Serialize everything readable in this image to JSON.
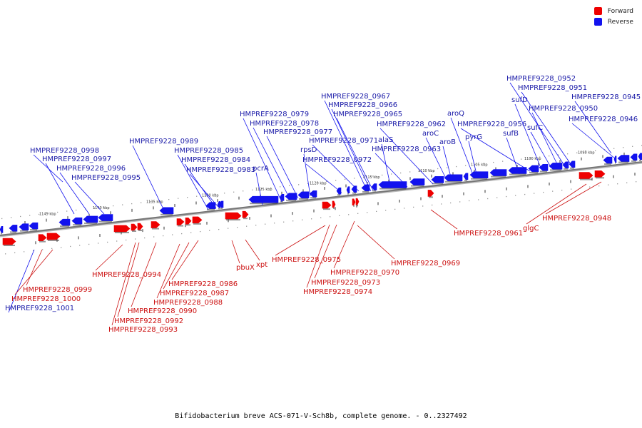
{
  "colors": {
    "forward": "#ee0000",
    "reverse": "#1212ee",
    "backbone": "#777777",
    "forward_label": "#cc1111",
    "reverse_label": "#1a1aa8"
  },
  "legend": [
    {
      "label": "Forward",
      "color": "#ee0000"
    },
    {
      "label": "Reverse",
      "color": "#1212ee"
    }
  ],
  "caption": "Bifidobacterium breve ACS-071-V-Sch8b, complete genome. - 0..2327492",
  "ticks": [
    "1145 kbp",
    "1140 kbp",
    "1135 kbp",
    "1130 kbp",
    "1125 kbp",
    "1120 kbp",
    "1115 kbp",
    "1110 kbp",
    "1105 kbp",
    "1100 kbp",
    "1095 kbp"
  ],
  "reverse_genes": [
    "HMPREF9228_1001",
    "HMPREF9228_0998",
    "HMPREF9228_0997",
    "HMPREF9228_0996",
    "HMPREF9228_0995",
    "HMPREF9228_0989",
    "HMPREF9228_0985",
    "HMPREF9228_0984",
    "HMPREF9228_0983",
    "HMPREF9228_0979",
    "HMPREF9228_0978",
    "HMPREF9228_0977",
    "pcrA",
    "rpsD",
    "HMPREF9228_0972",
    "HMPREF9228_0971",
    "HMPREF9228_0967",
    "HMPREF9228_0966",
    "HMPREF9228_0965",
    "alaS",
    "HMPREF9228_0963",
    "HMPREF9228_0962",
    "aroC",
    "aroB",
    "aroQ",
    "pyrG",
    "HMPREF9228_0956",
    "sufB",
    "sufD",
    "sufC",
    "HMPREF9228_0952",
    "HMPREF9228_0951",
    "HMPREF9228_0950",
    "HMPREF9228_0946",
    "HMPREF9228_0945"
  ],
  "forward_genes": [
    "HMPREF9228_0999",
    "HMPREF9228_1000",
    "HMPREF9228_0994",
    "HMPREF9228_0993",
    "HMPREF9228_0992",
    "HMPREF9228_0990",
    "HMPREF9228_0988",
    "HMPREF9228_0987",
    "HMPREF9228_0986",
    "pbuX",
    "xpt",
    "HMPREF9228_0975",
    "HMPREF9228_0974",
    "HMPREF9228_0973",
    "HMPREF9228_0970",
    "HMPREF9228_0969",
    "HMPREF9228_0961",
    "glgC",
    "HMPREF9228_0948"
  ]
}
